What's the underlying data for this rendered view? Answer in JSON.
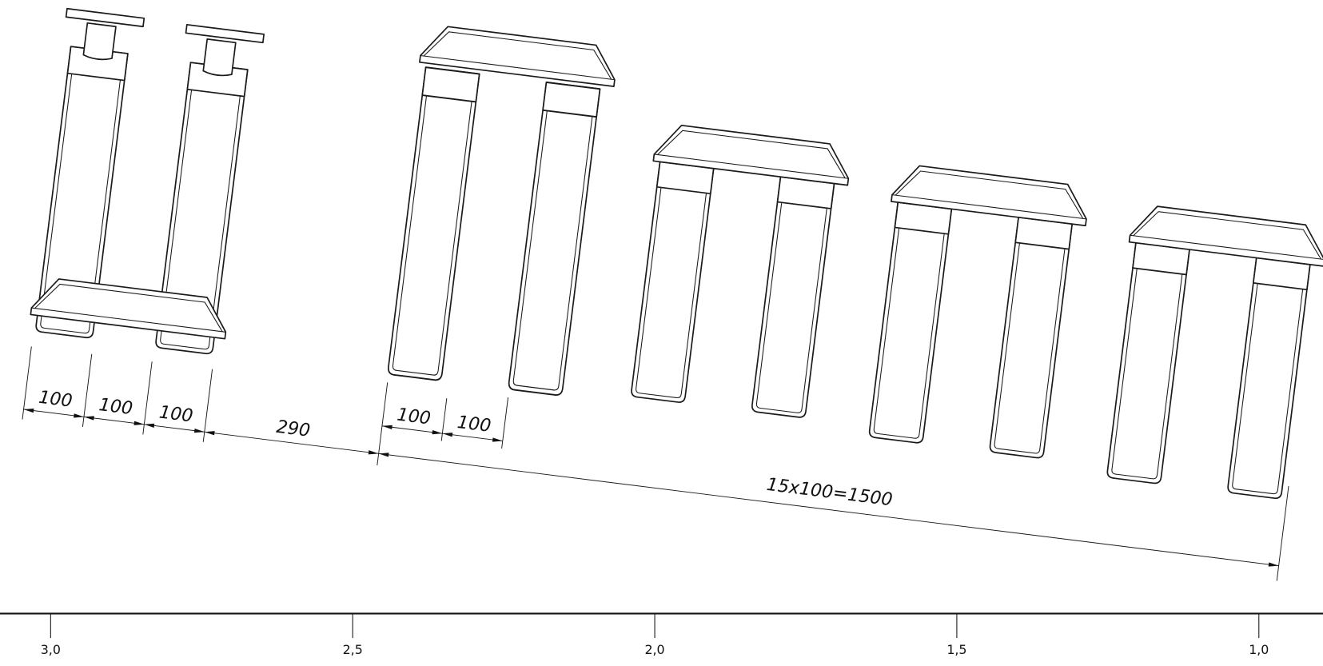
{
  "dimensions": {
    "row1": [
      "100",
      "100",
      "100",
      "290"
    ],
    "row2": [
      "100",
      "100"
    ],
    "total": "15x100=1500"
  },
  "scale": {
    "labels": [
      "3,0",
      "2,5",
      "2,0",
      "1,5",
      "1,0"
    ]
  }
}
